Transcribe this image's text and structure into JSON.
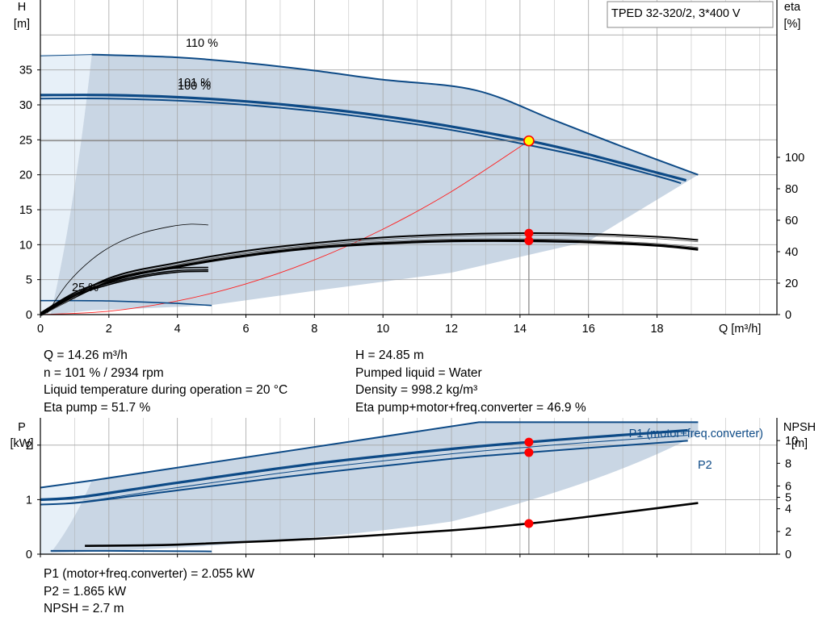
{
  "title_box": "TPED 32-320/2, 3*400 V",
  "top_chart": {
    "y_left": {
      "label": "H",
      "unit": "[m]"
    },
    "y_right": {
      "label": "eta",
      "unit": "[%]"
    },
    "x_axis": {
      "label": "Q [m³/h]"
    },
    "curve_labels": {
      "c110": "110 %",
      "c101": "101 %",
      "c100": "100 %",
      "c25": "25 %"
    }
  },
  "operating_info": {
    "left": [
      "Q = 14.26 m³/h",
      "n = 101 % / 2934 rpm",
      "Liquid temperature during operation = 20 °C",
      "Eta pump = 51.7 %"
    ],
    "right": [
      "H = 24.85 m",
      "Pumped liquid = Water",
      "Density = 998.2 kg/m³",
      "Eta pump+motor+freq.converter = 46.9 %"
    ]
  },
  "bottom_chart": {
    "y_left": {
      "label": "P",
      "unit": "[kW]"
    },
    "y_right": {
      "label": "NPSH",
      "unit": "[m]"
    },
    "legend": {
      "p1": "P1 (motor+freq.converter)",
      "p2": "P2"
    }
  },
  "power_info": [
    "P1 (motor+freq.converter) = 2.055 kW",
    "P2 = 1.865 kW",
    "NPSH = 2.7 m"
  ],
  "colors": {
    "curve_blue": "#0d4a86",
    "area_fill": "#c9d6e4",
    "area_light": "#e7f0f8",
    "grid": "#a6a6a6",
    "operating_point": "#ff0000",
    "system_curve": "#ff2020",
    "duty_marker_fill": "#ffff00"
  },
  "chart_data": [
    {
      "type": "line",
      "name": "Q-H / efficiency",
      "xlabel": "Q [m³/h]",
      "ylabel": "H [m]",
      "ylabel_right": "eta [%]",
      "xlim": [
        0,
        21.5
      ],
      "ylim": [
        0,
        45
      ],
      "ylim_right": [
        0,
        200
      ],
      "x_ticks": [
        0,
        2,
        4,
        6,
        8,
        10,
        12,
        14,
        16,
        18
      ],
      "y_ticks": [
        0,
        5,
        10,
        15,
        20,
        25,
        30,
        35
      ],
      "y_right_ticks": [
        0,
        20,
        40,
        60,
        80,
        100
      ],
      "grid": true,
      "series": [
        {
          "name": "110 %",
          "axis": "H",
          "x": [
            0,
            1.5,
            4,
            6,
            8,
            10,
            12.7,
            15,
            17,
            19.2
          ],
          "y": [
            37.2,
            37.2,
            36.8,
            36.0,
            34.9,
            33.6,
            32.1,
            27.8,
            24.0,
            20.0
          ]
        },
        {
          "name": "101 %",
          "axis": "H",
          "x": [
            0,
            2,
            4,
            6,
            8,
            10,
            12,
            14.26,
            16,
            18,
            18.85
          ],
          "y": [
            31.4,
            31.4,
            31.1,
            30.5,
            29.6,
            28.4,
            26.9,
            24.85,
            22.9,
            20.3,
            19.2
          ]
        },
        {
          "name": "100 %",
          "axis": "H",
          "x": [
            0,
            2,
            4,
            6,
            8,
            10,
            12,
            14,
            16,
            18,
            18.7
          ],
          "y": [
            30.9,
            30.9,
            30.6,
            30.0,
            29.1,
            27.9,
            26.4,
            24.5,
            22.4,
            19.8,
            18.8
          ]
        },
        {
          "name": "25 %",
          "axis": "H",
          "x": [
            0,
            1,
            2,
            3,
            4,
            5
          ],
          "y": [
            2.0,
            2.0,
            1.95,
            1.8,
            1.6,
            1.3
          ]
        },
        {
          "name": "system curve",
          "axis": "H",
          "x": [
            0,
            2,
            4,
            6,
            8,
            10,
            12,
            14.26
          ],
          "y": [
            0,
            0.49,
            1.95,
            4.4,
            7.82,
            12.22,
            17.6,
            24.85
          ]
        },
        {
          "name": "eta 110 %",
          "axis": "eta",
          "x": [
            0,
            2,
            4,
            6,
            8,
            10,
            12,
            14.26,
            16,
            18,
            19.2
          ],
          "y": [
            0,
            23,
            33,
            40.5,
            45.5,
            49,
            51,
            51.8,
            51.3,
            49.5,
            47.5
          ]
        },
        {
          "name": "eta 101 %",
          "axis": "eta",
          "x": [
            0,
            2,
            4,
            6,
            8,
            10,
            12,
            14.26,
            16,
            18,
            19.2
          ],
          "y": [
            0,
            21,
            30.5,
            37.5,
            42.5,
            45.3,
            46.8,
            46.9,
            46.1,
            44,
            41.5
          ]
        },
        {
          "name": "eta 25 %",
          "axis": "eta",
          "x": [
            0.2,
            0.8,
            1.5,
            2.2,
            3,
            3.8,
            4.4,
            4.9
          ],
          "y": [
            1,
            20,
            35,
            45,
            52,
            56,
            57.5,
            57
          ]
        }
      ],
      "operating_point": {
        "Q": 14.26,
        "H": 24.85,
        "eta_pump": 51.7,
        "eta_total": 46.9
      }
    },
    {
      "type": "line",
      "name": "Power / NPSH",
      "ylabel": "P [kW]",
      "ylabel_right": "NPSH [m]",
      "ylim": [
        0,
        2.5
      ],
      "ylim_right": [
        0,
        12
      ],
      "y_ticks": [
        0,
        1,
        2
      ],
      "y_right_ticks": [
        0,
        2,
        4,
        5,
        6,
        8,
        10
      ],
      "grid": true,
      "series": [
        {
          "name": "P1 (motor+freq.converter) 110 %",
          "axis": "P",
          "x": [
            0,
            1.5,
            12.8,
            19.2
          ],
          "y": [
            1.22,
            1.35,
            2.42,
            2.42
          ]
        },
        {
          "name": "P1 (motor+freq.converter)",
          "axis": "P",
          "x": [
            0,
            1.2,
            4,
            8,
            12,
            14.26,
            16,
            18.9
          ],
          "y": [
            1.0,
            1.05,
            1.31,
            1.66,
            1.93,
            2.055,
            2.14,
            2.27
          ]
        },
        {
          "name": "P2",
          "axis": "P",
          "x": [
            0,
            1.2,
            4,
            8,
            12,
            14.26,
            16,
            18.9
          ],
          "y": [
            0.91,
            0.95,
            1.17,
            1.48,
            1.75,
            1.865,
            1.95,
            2.08
          ]
        },
        {
          "name": "P1 25 %",
          "axis": "P",
          "x": [
            0.3,
            2,
            5
          ],
          "y": [
            0.06,
            0.06,
            0.05
          ]
        },
        {
          "name": "NPSH",
          "axis": "NPSH",
          "x": [
            1.3,
            4,
            8,
            12,
            14.26,
            16,
            19.2
          ],
          "y": [
            0.73,
            0.84,
            1.35,
            2.1,
            2.7,
            3.3,
            4.5
          ]
        }
      ],
      "operating_point": {
        "P1": 2.055,
        "P2": 1.865,
        "NPSH": 2.7
      }
    }
  ]
}
